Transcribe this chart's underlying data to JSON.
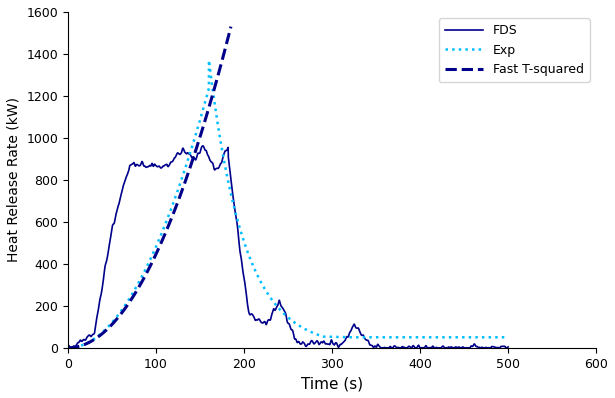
{
  "title": "",
  "xlabel": "Time (s)",
  "ylabel": "Heat Release Rate (kW)",
  "xlim": [
    0,
    600
  ],
  "ylim": [
    0,
    1600
  ],
  "xticks": [
    0,
    100,
    200,
    300,
    400,
    500,
    600
  ],
  "yticks": [
    0,
    200,
    400,
    600,
    800,
    1000,
    1200,
    1400,
    1600
  ],
  "fds_color": "#00008B",
  "exp_color": "#00BFFF",
  "tsq_color": "#00008B",
  "legend_labels": [
    "FDS",
    "Exp",
    "Fast T-squared"
  ],
  "fast_tsq_end": 185,
  "fast_tsq_peak": 1530
}
